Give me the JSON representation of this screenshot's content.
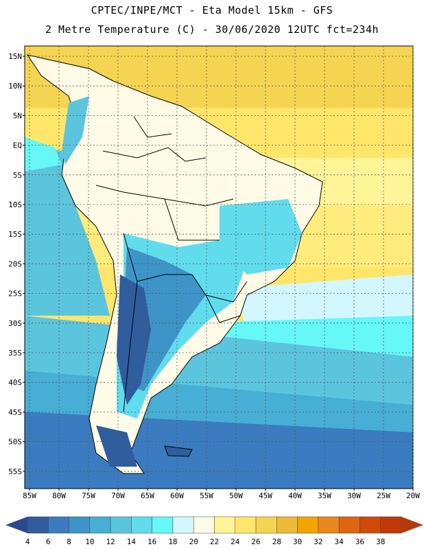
{
  "header": {
    "line1": "CPTEC/INPE/MCT -  Eta Model 15km - GFS",
    "line2": "2 Metre Temperature (C) - 30/06/2020 12UTC fct=234h"
  },
  "map": {
    "lat_labels": [
      "15N",
      "10N",
      "5N",
      "EQ",
      "5S",
      "10S",
      "15S",
      "20S",
      "25S",
      "30S",
      "35S",
      "40S",
      "45S",
      "50S",
      "55S"
    ],
    "lon_labels": [
      "85W",
      "80W",
      "75W",
      "70W",
      "65W",
      "60W",
      "55W",
      "50W",
      "45W",
      "40W",
      "35W",
      "30W",
      "25W",
      "20W"
    ]
  },
  "legend": {
    "ticks": [
      "4",
      "6",
      "8",
      "10",
      "12",
      "14",
      "16",
      "18",
      "20",
      "22",
      "24",
      "26",
      "28",
      "30",
      "32",
      "34",
      "36",
      "38"
    ],
    "colors": [
      "#2f5d9e",
      "#3a7cbf",
      "#3d95c7",
      "#47aed5",
      "#5cc5de",
      "#61dced",
      "#66f7f7",
      "#d2f7ff",
      "#fffbe6",
      "#fff497",
      "#ffe66a",
      "#f5d452",
      "#eebb36",
      "#f0a500",
      "#e8871c",
      "#e0650f",
      "#d04a08",
      "#c03a08"
    ],
    "low_arrow_color": "#2a4a90",
    "high_arrow_color": "#b33a0a"
  }
}
